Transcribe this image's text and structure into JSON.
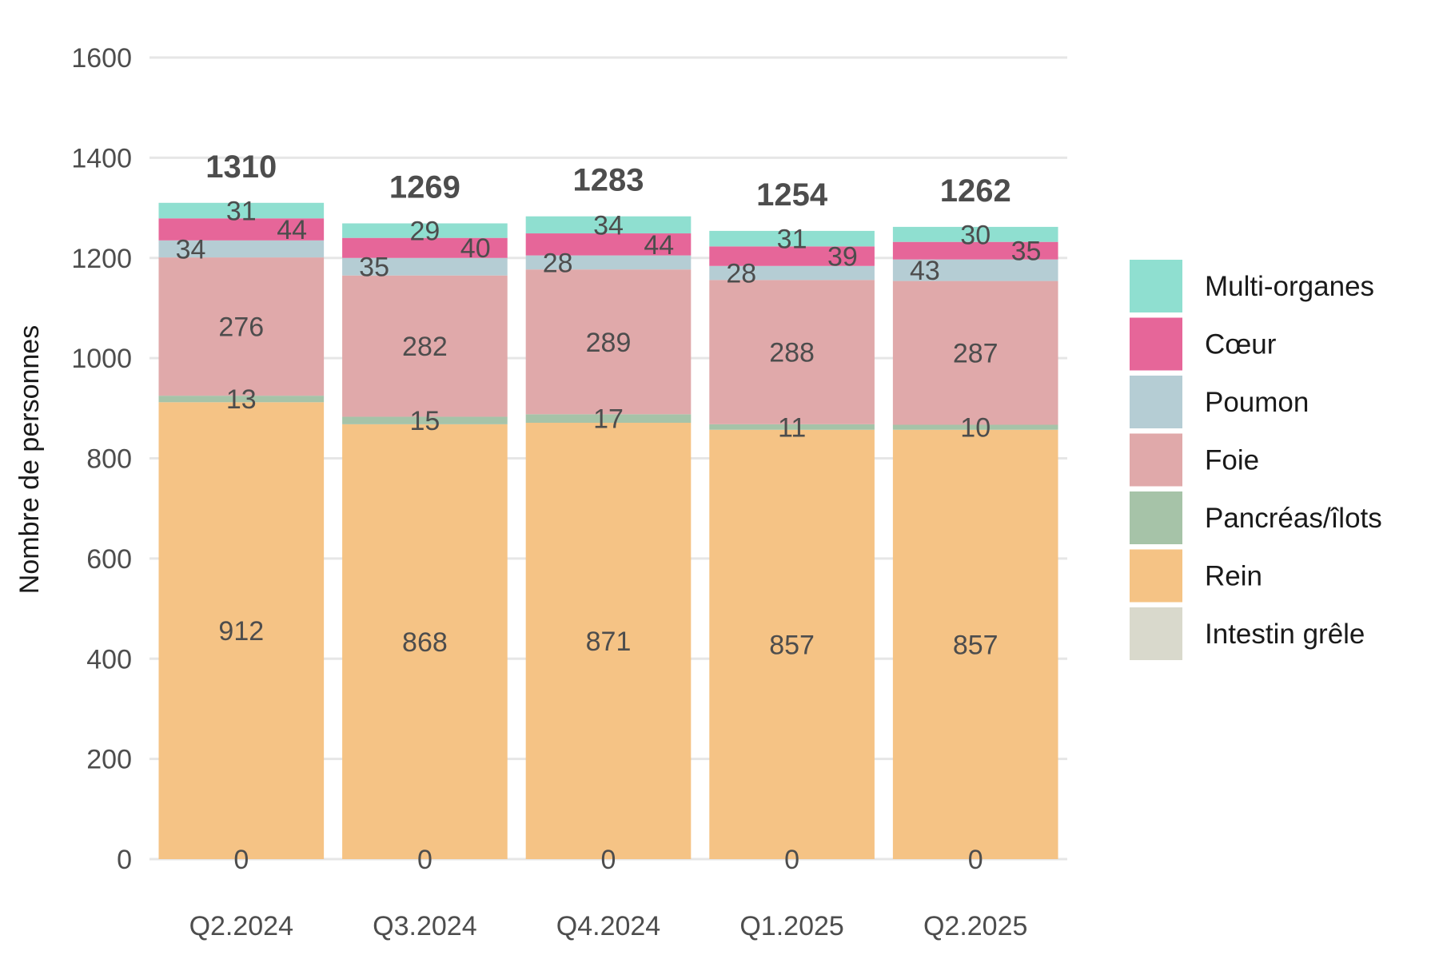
{
  "chart_data": {
    "type": "bar",
    "stacked": true,
    "title": "",
    "xlabel": "",
    "ylabel": "Nombre de personnes",
    "ylim": [
      0,
      1600
    ],
    "yticks": [
      0,
      200,
      400,
      600,
      800,
      1000,
      1200,
      1400,
      1600
    ],
    "grid": true,
    "legend_position": "right",
    "categories": [
      "Q2.2024",
      "Q3.2024",
      "Q4.2024",
      "Q1.2025",
      "Q2.2025"
    ],
    "series": [
      {
        "name": "Intestin grêle",
        "color": "#d9d9cc",
        "values": [
          0,
          0,
          0,
          0,
          0
        ]
      },
      {
        "name": "Rein",
        "color": "#f5c385",
        "values": [
          912,
          868,
          871,
          857,
          857
        ]
      },
      {
        "name": "Pancréas/îlots",
        "color": "#a6c3a8",
        "values": [
          13,
          15,
          17,
          11,
          10
        ]
      },
      {
        "name": "Foie",
        "color": "#e0a9aa",
        "values": [
          276,
          282,
          289,
          288,
          287
        ]
      },
      {
        "name": "Poumon",
        "color": "#b5cdd4",
        "values": [
          34,
          35,
          28,
          28,
          43
        ]
      },
      {
        "name": "Cœur",
        "color": "#e66699",
        "values": [
          44,
          40,
          44,
          39,
          35
        ]
      },
      {
        "name": "Multi-organes",
        "color": "#8fdfd0",
        "values": [
          31,
          29,
          34,
          31,
          30
        ]
      }
    ],
    "totals": [
      1310,
      1269,
      1283,
      1254,
      1262
    ],
    "legend_order": [
      "Multi-organes",
      "Cœur",
      "Poumon",
      "Foie",
      "Pancréas/îlots",
      "Rein",
      "Intestin grêle"
    ]
  }
}
